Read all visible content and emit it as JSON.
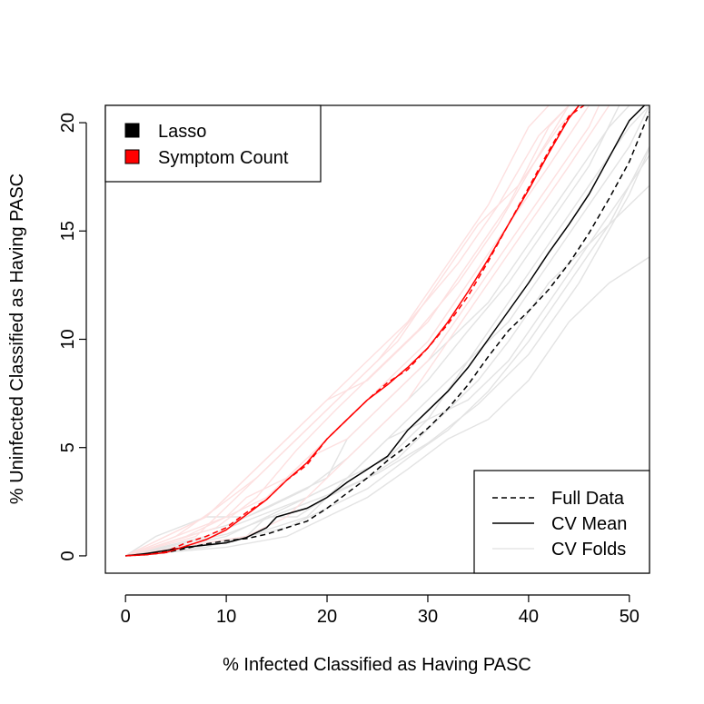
{
  "chart_data": {
    "type": "line",
    "title": "",
    "xlabel": "% Infected Classified as Having PASC",
    "ylabel": "% Uninfected Classified as Having PASC",
    "xlim": [
      -2,
      52
    ],
    "ylim": [
      -0.8,
      20.8
    ],
    "xticks": [
      "0",
      "10",
      "20",
      "30",
      "40",
      "50"
    ],
    "yticks": [
      "0",
      "5",
      "10",
      "15",
      "20"
    ],
    "legend_models": {
      "position": "top-left",
      "entries": [
        {
          "label": "Lasso",
          "color": "#000000"
        },
        {
          "label": "Symptom Count",
          "color": "#ff0000"
        }
      ]
    },
    "legend_lines": {
      "position": "bottom-right",
      "entries": [
        {
          "label": "Full Data",
          "style": "dashed",
          "color": "#000000"
        },
        {
          "label": "CV Mean",
          "style": "solid",
          "color": "#000000"
        },
        {
          "label": "CV Folds",
          "style": "solid",
          "color": "#e6e6e6"
        }
      ]
    },
    "series": [
      {
        "name": "Lasso CV Fold 1",
        "model": "Lasso",
        "kind": "fold",
        "color": "#e3e3e3",
        "x": [
          0,
          4,
          7,
          12,
          14,
          17,
          20,
          24,
          27,
          31,
          35,
          38,
          42,
          46,
          50,
          52
        ],
        "y": [
          0,
          0.2,
          0.4,
          0.9,
          1.8,
          1.8,
          2.7,
          3.6,
          4.5,
          6.3,
          8.1,
          9.9,
          12.6,
          14.4,
          16.2,
          17.1
        ]
      },
      {
        "name": "Lasso CV Fold 2",
        "model": "Lasso",
        "kind": "fold",
        "color": "#e3e3e3",
        "x": [
          0,
          6,
          10,
          14,
          18,
          22,
          26,
          30,
          34,
          38,
          42,
          46,
          50,
          52
        ],
        "y": [
          0,
          0.5,
          0.9,
          1.8,
          2.7,
          3.6,
          5.4,
          7.2,
          9.0,
          10.8,
          13.5,
          16.2,
          18.9,
          20.8
        ]
      },
      {
        "name": "Lasso CV Fold 3",
        "model": "Lasso",
        "kind": "fold",
        "color": "#e3e3e3",
        "x": [
          0,
          8,
          12,
          16,
          20,
          24,
          28,
          32,
          36,
          40,
          44,
          48,
          52
        ],
        "y": [
          0,
          0.4,
          0.9,
          1.3,
          2.2,
          3.1,
          4.5,
          5.8,
          7.6,
          9.9,
          12.6,
          15.3,
          18.9
        ]
      },
      {
        "name": "Lasso CV Fold 4",
        "model": "Lasso",
        "kind": "fold",
        "color": "#e3e3e3",
        "x": [
          0,
          3,
          8,
          12,
          16,
          20,
          22,
          26,
          28,
          32,
          36,
          40,
          44,
          48,
          50
        ],
        "y": [
          0,
          0.9,
          1.8,
          1.8,
          2.7,
          3.6,
          5.4,
          7.2,
          8.1,
          9.9,
          11.7,
          14.4,
          17.1,
          19.8,
          20.8
        ]
      },
      {
        "name": "Lasso CV Fold 5",
        "model": "Lasso",
        "kind": "fold",
        "color": "#e3e3e3",
        "x": [
          0,
          10,
          16,
          20,
          24,
          28,
          32,
          36,
          40,
          44,
          48,
          52
        ],
        "y": [
          0,
          0.4,
          0.9,
          1.8,
          2.7,
          4.0,
          5.4,
          6.3,
          8.1,
          10.8,
          12.6,
          13.8
        ]
      },
      {
        "name": "Lasso CV Fold 6",
        "model": "Lasso",
        "kind": "fold",
        "color": "#e3e3e3",
        "x": [
          0,
          6,
          10,
          14,
          18,
          22,
          26,
          30,
          34,
          38,
          42,
          46,
          49
        ],
        "y": [
          0,
          0.9,
          1.4,
          2.2,
          3.1,
          4.5,
          6.3,
          8.1,
          10.4,
          12.6,
          15.3,
          18.0,
          20.8
        ]
      },
      {
        "name": "Lasso CV Fold 7",
        "model": "Lasso",
        "kind": "fold",
        "color": "#e3e3e3",
        "x": [
          0,
          12,
          18,
          22,
          26,
          30,
          34,
          38,
          42,
          46,
          50,
          52
        ],
        "y": [
          0,
          0.9,
          1.8,
          3.6,
          5.4,
          6.3,
          7.2,
          9.0,
          11.7,
          14.4,
          17.1,
          18.5
        ]
      },
      {
        "name": "Lasso CV Fold 8",
        "model": "Lasso",
        "kind": "fold",
        "color": "#e3e3e3",
        "x": [
          0,
          5,
          10,
          15,
          20,
          25,
          30,
          35,
          40,
          45,
          50,
          52
        ],
        "y": [
          0,
          0.5,
          1.0,
          1.9,
          2.8,
          3.8,
          5.2,
          7.0,
          9.3,
          12.6,
          16.7,
          18.8
        ]
      },
      {
        "name": "Lasso CV Fold 9",
        "model": "Lasso",
        "kind": "fold",
        "color": "#e3e3e3",
        "x": [
          0,
          8,
          13,
          18,
          22,
          26,
          30,
          34,
          38,
          42,
          46,
          50,
          52
        ],
        "y": [
          0,
          0.9,
          1.8,
          2.7,
          3.6,
          4.5,
          6.3,
          9.0,
          11.7,
          14.4,
          17.1,
          19.8,
          20.8
        ]
      },
      {
        "name": "Symptom Count CV Fold 1",
        "model": "Symptom Count",
        "kind": "fold",
        "color": "#fde0e0",
        "x": [
          0,
          4,
          8,
          10,
          14,
          16,
          20,
          24,
          28,
          30,
          34,
          38,
          42,
          44
        ],
        "y": [
          0,
          0.9,
          1.8,
          2.7,
          4.5,
          5.4,
          7.2,
          8.1,
          9.9,
          10.8,
          13.5,
          16.2,
          19.8,
          20.8
        ]
      },
      {
        "name": "Symptom Count CV Fold 2",
        "model": "Symptom Count",
        "kind": "fold",
        "color": "#fde0e0",
        "x": [
          0,
          6,
          10,
          12,
          16,
          20,
          22,
          26,
          30,
          34,
          38,
          42,
          46
        ],
        "y": [
          0,
          0.9,
          1.8,
          2.7,
          3.6,
          5.4,
          6.3,
          8.1,
          9.9,
          12.6,
          15.3,
          18.0,
          20.8
        ]
      },
      {
        "name": "Symptom Count CV Fold 3",
        "model": "Symptom Count",
        "kind": "fold",
        "color": "#fde0e0",
        "x": [
          0,
          8,
          12,
          16,
          20,
          24,
          28,
          32,
          36,
          40,
          42
        ],
        "y": [
          0,
          1.8,
          3.6,
          5.4,
          7.2,
          9.0,
          10.8,
          13.5,
          16.2,
          19.8,
          20.8
        ]
      },
      {
        "name": "Symptom Count CV Fold 4",
        "model": "Symptom Count",
        "kind": "fold",
        "color": "#fde0e0",
        "x": [
          0,
          10,
          14,
          18,
          22,
          26,
          30,
          34,
          38,
          42,
          46,
          47
        ],
        "y": [
          0,
          1.8,
          2.7,
          4.5,
          5.4,
          7.2,
          9.0,
          11.7,
          14.4,
          17.1,
          19.8,
          20.8
        ]
      },
      {
        "name": "Symptom Count CV Fold 5",
        "model": "Symptom Count",
        "kind": "fold",
        "color": "#fde0e0",
        "x": [
          0,
          5,
          9,
          13,
          17,
          21,
          25,
          29,
          33,
          37,
          41,
          44
        ],
        "y": [
          0,
          0.9,
          2.2,
          3.6,
          5.4,
          7.2,
          9.0,
          11.3,
          13.5,
          16.2,
          19.4,
          20.8
        ]
      },
      {
        "name": "Symptom Count CV Fold 6",
        "model": "Symptom Count",
        "kind": "fold",
        "color": "#fde0e0",
        "x": [
          0,
          12,
          16,
          20,
          24,
          28,
          32,
          36,
          40,
          44,
          48
        ],
        "y": [
          0,
          0.9,
          1.8,
          3.6,
          5.4,
          7.2,
          9.9,
          12.6,
          15.3,
          18.0,
          20.8
        ]
      },
      {
        "name": "Symptom Count CV Fold 7",
        "model": "Symptom Count",
        "kind": "fold",
        "color": "#fde0e0",
        "x": [
          0,
          7,
          11,
          15,
          19,
          23,
          27,
          31,
          35,
          39,
          43,
          45
        ],
        "y": [
          0,
          0.9,
          2.7,
          4.5,
          6.3,
          8.1,
          9.9,
          12.6,
          15.3,
          17.1,
          19.8,
          20.8
        ]
      },
      {
        "name": "Symptom Count CV Fold 8",
        "model": "Symptom Count",
        "kind": "fold",
        "color": "#fde0e0",
        "x": [
          0,
          9,
          13,
          17,
          21,
          25,
          29,
          33,
          37,
          41,
          44
        ],
        "y": [
          0,
          1.3,
          2.7,
          4.9,
          6.8,
          8.6,
          10.4,
          12.6,
          15.3,
          18.5,
          20.8
        ]
      },
      {
        "name": "Lasso Full Data",
        "model": "Lasso",
        "kind": "full",
        "color": "#000000",
        "x": [
          0,
          2,
          4,
          6,
          8,
          10,
          12,
          14,
          16,
          18,
          20,
          22,
          24,
          26,
          28,
          30,
          32,
          34,
          36,
          38,
          40,
          42,
          44,
          46,
          48,
          50,
          52
        ],
        "y": [
          0,
          0.05,
          0.15,
          0.35,
          0.55,
          0.7,
          0.8,
          1.0,
          1.3,
          1.6,
          2.2,
          2.9,
          3.6,
          4.4,
          5.1,
          5.9,
          6.8,
          7.9,
          9.2,
          10.4,
          11.3,
          12.3,
          13.5,
          14.9,
          16.5,
          18.2,
          20.5
        ]
      },
      {
        "name": "Lasso CV Mean",
        "model": "Lasso",
        "kind": "mean",
        "color": "#000000",
        "x": [
          0,
          2,
          4,
          6,
          8,
          10,
          12,
          14,
          15,
          18,
          20,
          22,
          24,
          26,
          28,
          30,
          32,
          34,
          36,
          38,
          40,
          42,
          44,
          46,
          48,
          50,
          51.5
        ],
        "y": [
          0,
          0.1,
          0.25,
          0.4,
          0.5,
          0.6,
          0.85,
          1.3,
          1.8,
          2.2,
          2.7,
          3.4,
          4.0,
          4.6,
          5.8,
          6.7,
          7.6,
          8.7,
          10.0,
          11.3,
          12.6,
          14.0,
          15.3,
          16.7,
          18.4,
          20.1,
          20.8
        ]
      },
      {
        "name": "Symptom Count Full Data",
        "model": "Symptom Count",
        "kind": "full",
        "color": "#ff0000",
        "x": [
          0,
          2,
          4,
          6,
          8,
          10,
          12,
          14,
          16,
          18,
          20,
          22,
          24,
          26,
          28,
          30,
          32,
          34,
          36,
          38,
          40,
          42,
          44,
          45.5
        ],
        "y": [
          0,
          0.1,
          0.2,
          0.6,
          0.9,
          1.3,
          2.0,
          2.6,
          3.5,
          4.2,
          5.4,
          6.3,
          7.2,
          8.0,
          8.6,
          9.6,
          10.7,
          12.0,
          13.6,
          15.3,
          17.0,
          18.7,
          20.3,
          20.8
        ]
      },
      {
        "name": "Symptom Count CV Mean",
        "model": "Symptom Count",
        "kind": "mean",
        "color": "#ff0000",
        "x": [
          0,
          2,
          4,
          6,
          8,
          10,
          12,
          14,
          16,
          18,
          20,
          22,
          24,
          26,
          28,
          30,
          32,
          34,
          36,
          38,
          40,
          42,
          44,
          45
        ],
        "y": [
          0,
          0.05,
          0.15,
          0.45,
          0.75,
          1.2,
          1.9,
          2.6,
          3.5,
          4.3,
          5.4,
          6.3,
          7.2,
          7.9,
          8.7,
          9.6,
          10.8,
          12.2,
          13.7,
          15.3,
          16.9,
          18.6,
          20.2,
          20.8
        ]
      }
    ]
  }
}
